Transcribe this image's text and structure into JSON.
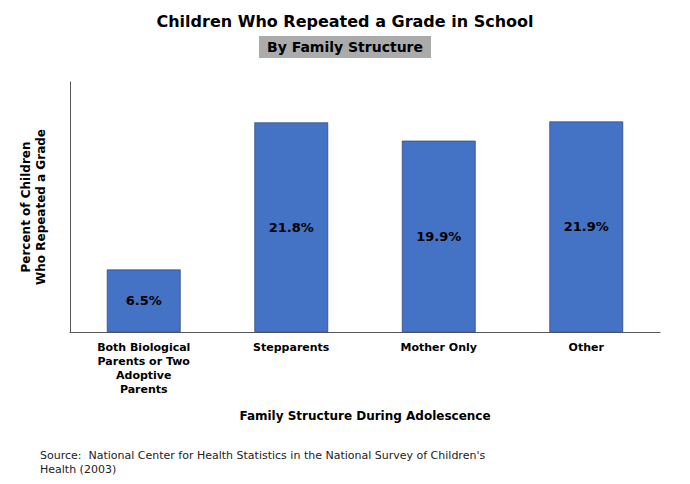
{
  "chart_data": {
    "type": "bar",
    "title": "Children Who Repeated a Grade in School",
    "subtitle": "By Family Structure",
    "categories": [
      "Both Biological\nParents or Two\nAdoptive\nParents",
      "Stepparents",
      "Mother Only",
      "Other"
    ],
    "values": [
      6.5,
      21.8,
      19.9,
      21.9
    ],
    "value_labels": [
      "6.5%",
      "21.8%",
      "19.9%",
      "21.9%"
    ],
    "data_labels": true,
    "color": "#4472C4",
    "xlabel": "Family Structure During Adolescence",
    "ylabel": "Percent of Children\nWho Repeated a Grade",
    "ylim": [
      0,
      26
    ],
    "grid": false,
    "tick_labels": "x",
    "annotations": [
      "Source:  National Center for Health Statistics in the National Survey of Children's\nHealth (2003)"
    ]
  }
}
